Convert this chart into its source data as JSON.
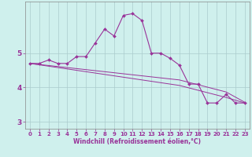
{
  "xlabel": "Windchill (Refroidissement éolien,°C)",
  "background_color": "#cff0ed",
  "grid_color": "#aacccc",
  "line_color": "#993399",
  "hours": [
    0,
    1,
    2,
    3,
    4,
    5,
    6,
    7,
    8,
    9,
    10,
    11,
    12,
    13,
    14,
    15,
    16,
    17,
    18,
    19,
    20,
    21,
    22,
    23
  ],
  "line1": [
    4.7,
    4.7,
    4.8,
    4.7,
    4.7,
    4.9,
    4.9,
    5.3,
    5.7,
    5.5,
    6.1,
    6.15,
    5.95,
    5.0,
    5.0,
    4.85,
    4.65,
    4.1,
    4.1,
    3.55,
    3.55,
    3.8,
    3.55,
    3.55
  ],
  "line2": [
    4.7,
    4.67,
    4.64,
    4.61,
    4.58,
    4.55,
    4.52,
    4.49,
    4.46,
    4.43,
    4.4,
    4.37,
    4.34,
    4.31,
    4.28,
    4.25,
    4.22,
    4.15,
    4.08,
    4.01,
    3.94,
    3.87,
    3.72,
    3.57
  ],
  "line3": [
    4.7,
    4.66,
    4.62,
    4.58,
    4.54,
    4.5,
    4.46,
    4.42,
    4.38,
    4.34,
    4.3,
    4.26,
    4.22,
    4.18,
    4.14,
    4.1,
    4.06,
    3.99,
    3.92,
    3.85,
    3.78,
    3.71,
    3.63,
    3.55
  ],
  "ylim": [
    2.8,
    6.5
  ],
  "yticks": [
    3,
    4,
    5
  ],
  "xticks": [
    0,
    1,
    2,
    3,
    4,
    5,
    6,
    7,
    8,
    9,
    10,
    11,
    12,
    13,
    14,
    15,
    16,
    17,
    18,
    19,
    20,
    21,
    22,
    23
  ]
}
